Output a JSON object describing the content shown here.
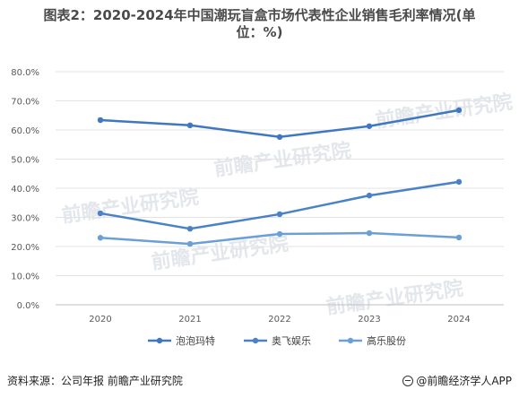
{
  "title": {
    "line1": "图表2：2020-2024年中国潮玩盲盒市场代表性企业销售毛利率情况(单",
    "line2": "位：%)"
  },
  "watermark": "前瞻产业研究院",
  "source": "资料来源：公司年报 前瞻产业研究院",
  "brand": "@前瞻经济学人APP",
  "chart_data": {
    "type": "line",
    "title": "图表2：2020-2024年中国潮玩盲盒市场代表性企业销售毛利率情况(单位：%)",
    "x": [
      "2020",
      "2021",
      "2022",
      "2023",
      "2024"
    ],
    "y_ticks": [
      "0.0%",
      "10.0%",
      "20.0%",
      "30.0%",
      "40.0%",
      "50.0%",
      "60.0%",
      "70.0%",
      "80.0%"
    ],
    "ylim": [
      0,
      80
    ],
    "grid": true,
    "legend_position": "bottom",
    "series": [
      {
        "name": "泡泡玛特",
        "color": "#3f78c1",
        "values": [
          63.4,
          61.6,
          57.6,
          61.3,
          66.8
        ]
      },
      {
        "name": "奥飞娱乐",
        "color": "#4a82c8",
        "values": [
          31.4,
          26.1,
          31.1,
          37.5,
          42.2
        ]
      },
      {
        "name": "高乐股份",
        "color": "#6b9fd8",
        "values": [
          23.0,
          20.9,
          24.3,
          24.6,
          23.1
        ]
      }
    ]
  }
}
